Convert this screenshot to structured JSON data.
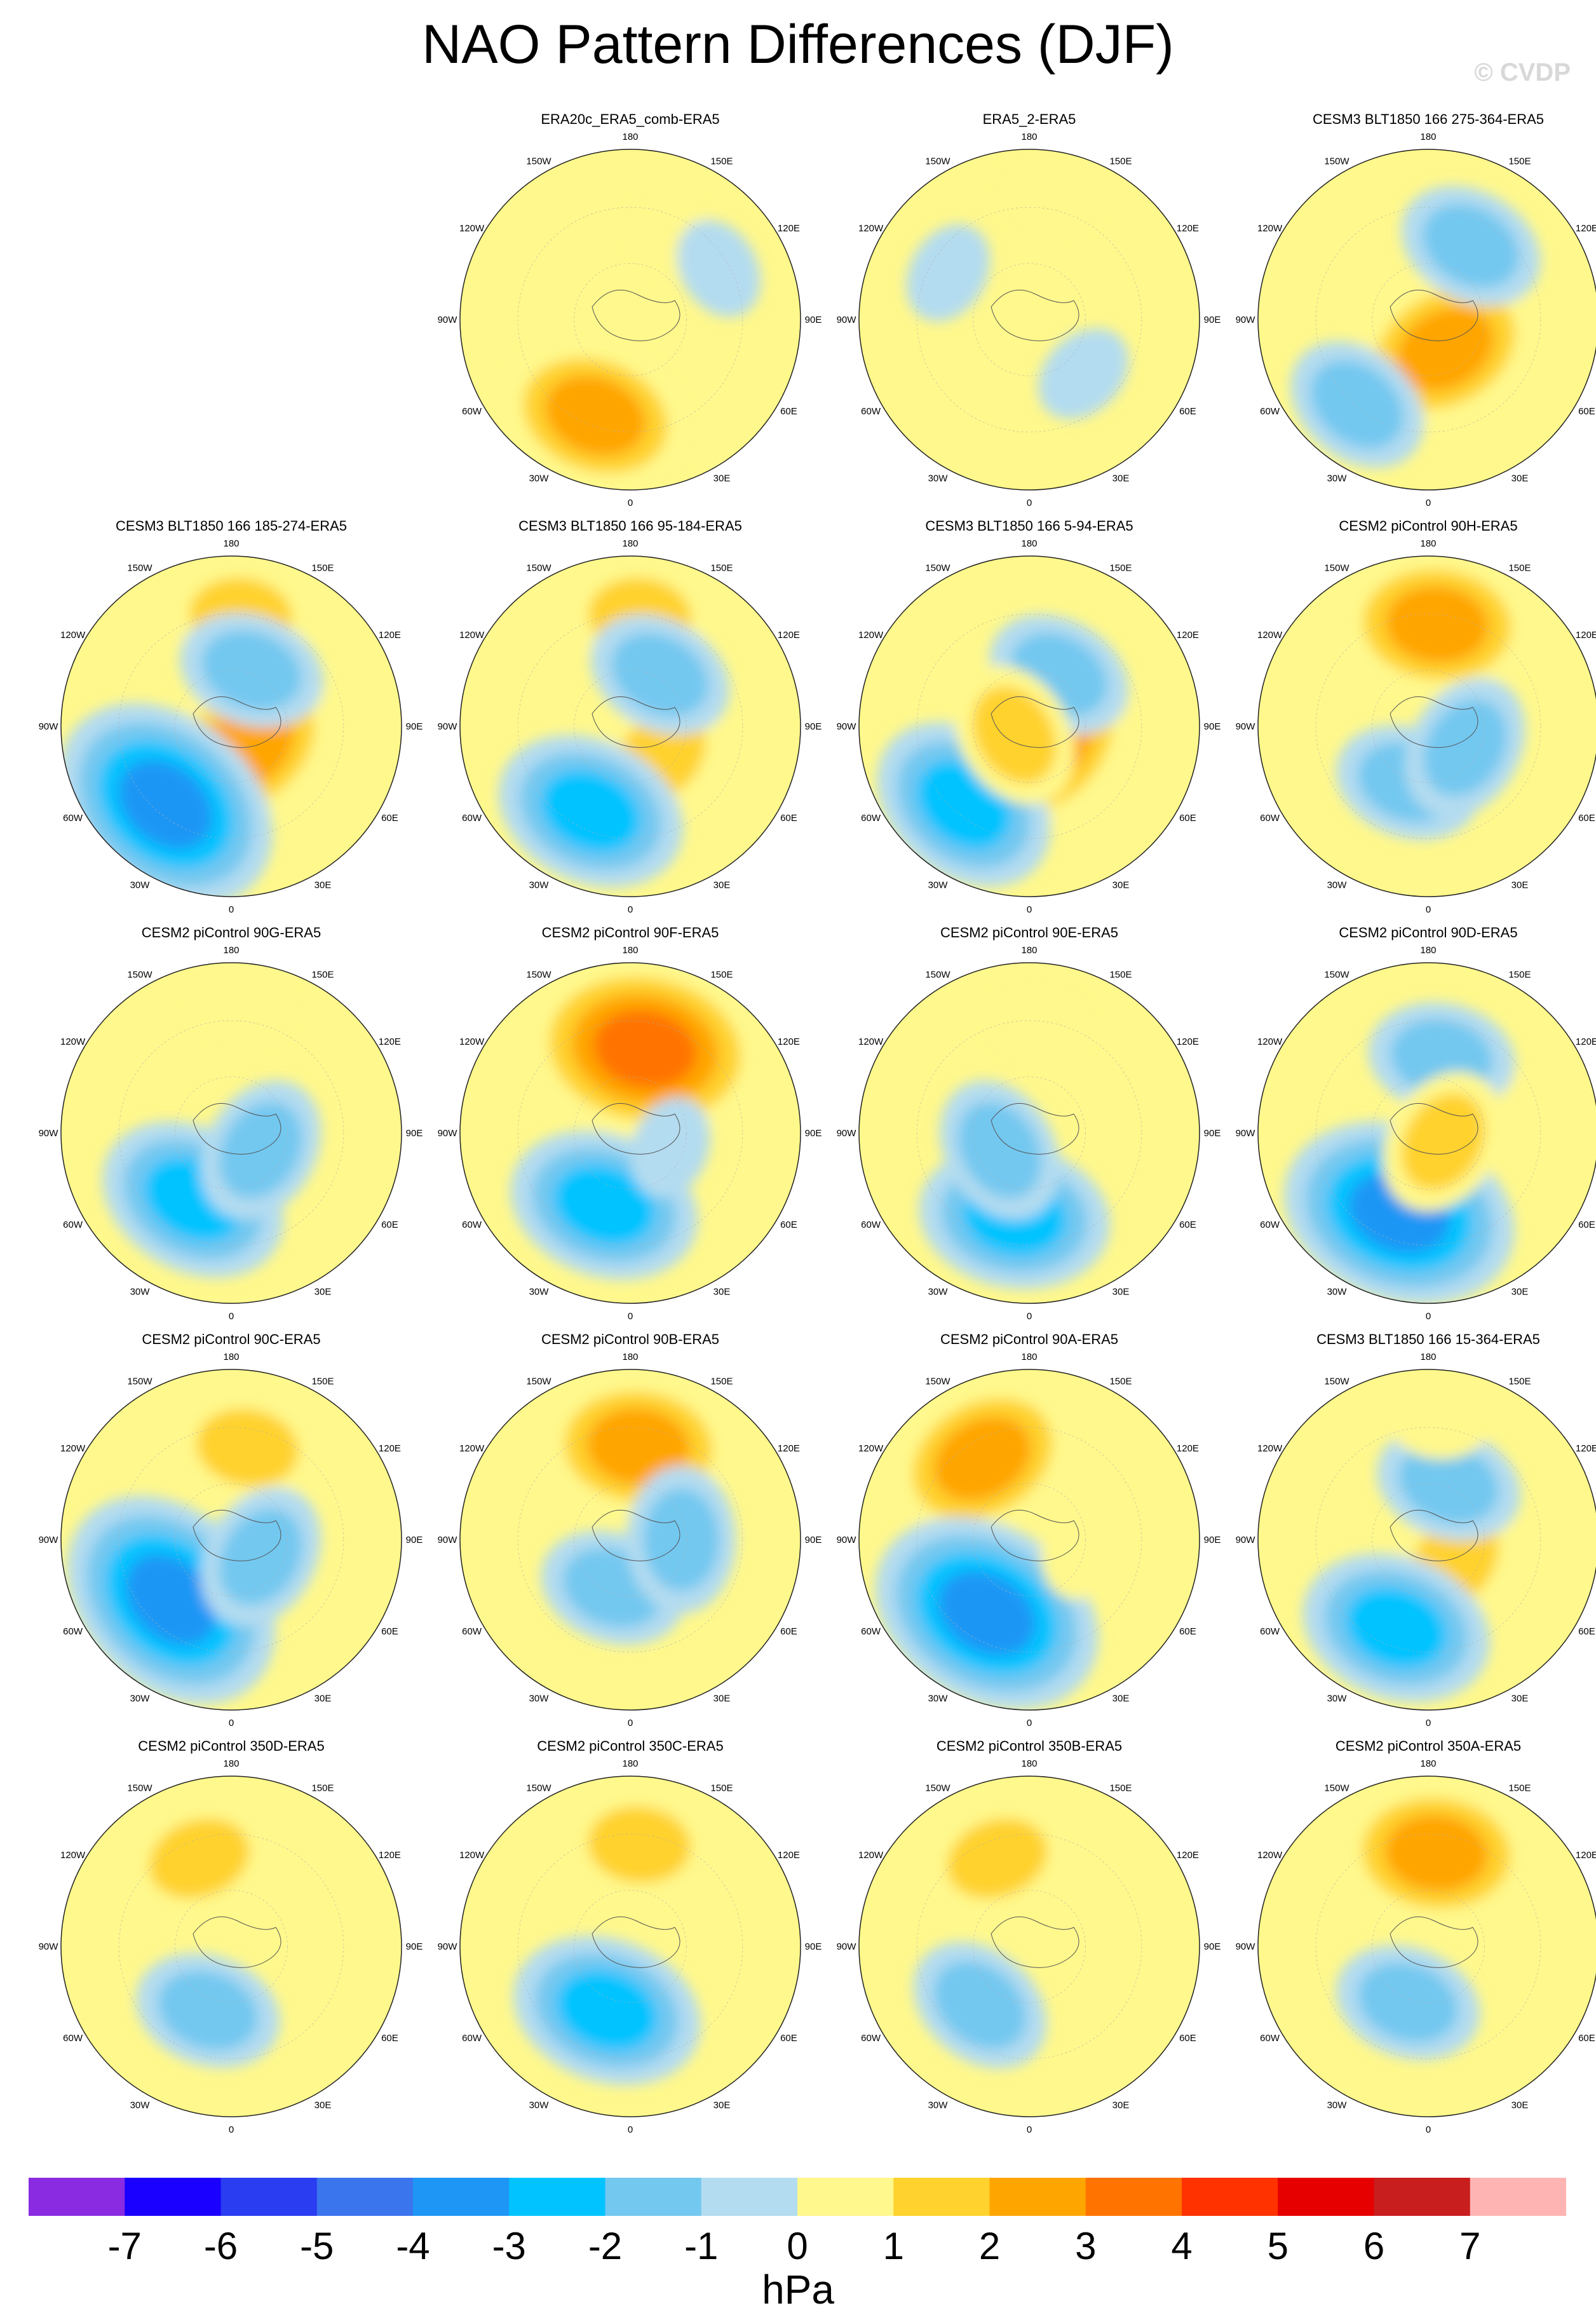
{
  "title": "NAO Pattern Differences (DJF)",
  "watermark": "© CVDP",
  "chart_data": {
    "type": "heatmap",
    "projection": "north-polar-stereographic",
    "variable_unit": "hPa",
    "longitude_labels": [
      "180",
      "150E",
      "120E",
      "90E",
      "60E",
      "30E",
      "0",
      "30W",
      "60W",
      "90W",
      "120W",
      "150W"
    ],
    "panels": [
      {
        "title": "ERA20c_ERA5_comb-ERA5",
        "features": [
          {
            "lon": -20,
            "rfrac": 0.6,
            "value": 3
          },
          {
            "lon": 150,
            "rfrac": 0.55,
            "value": 1
          },
          {
            "lon": 120,
            "rfrac": 0.6,
            "value": -1
          }
        ]
      },
      {
        "title": "ERA5_2-ERA5",
        "features": [
          {
            "lon": 45,
            "rfrac": 0.45,
            "value": -1
          },
          {
            "lon": -120,
            "rfrac": 0.55,
            "value": -1
          },
          {
            "lon": 170,
            "rfrac": 0.75,
            "value": 1
          }
        ]
      },
      {
        "title": "CESM3 BLT1850 166 275-364-ERA5",
        "features": [
          {
            "lon": 30,
            "rfrac": 0.2,
            "value": 3
          },
          {
            "lon": -40,
            "rfrac": 0.65,
            "value": -2
          },
          {
            "lon": 150,
            "rfrac": 0.5,
            "value": -2
          }
        ]
      },
      {
        "title": "CESM3 BLT1850 166 185-274-ERA5",
        "features": [
          {
            "lon": 40,
            "rfrac": 0.15,
            "value": 3
          },
          {
            "lon": -40,
            "rfrac": 0.6,
            "value": -4
          },
          {
            "lon": 175,
            "rfrac": 0.65,
            "value": 2
          },
          {
            "lon": 160,
            "rfrac": 0.35,
            "value": -2
          }
        ]
      },
      {
        "title": "CESM3 BLT1850 166 95-184-ERA5",
        "features": [
          {
            "lon": 45,
            "rfrac": 0.25,
            "value": 2
          },
          {
            "lon": -25,
            "rfrac": 0.55,
            "value": -3
          },
          {
            "lon": 175,
            "rfrac": 0.65,
            "value": 2
          },
          {
            "lon": 150,
            "rfrac": 0.35,
            "value": -2
          }
        ]
      },
      {
        "title": "CESM3 BLT1850 166 5-94-ERA5",
        "features": [
          {
            "lon": 50,
            "rfrac": 0.15,
            "value": 3
          },
          {
            "lon": -40,
            "rfrac": 0.6,
            "value": -3
          },
          {
            "lon": 150,
            "rfrac": 0.35,
            "value": -2
          },
          {
            "lon": -60,
            "rfrac": 0.1,
            "value": 2
          }
        ]
      },
      {
        "title": "CESM2 piControl 90H-ERA5",
        "features": [
          {
            "lon": 175,
            "rfrac": 0.6,
            "value": 3
          },
          {
            "lon": -20,
            "rfrac": 0.35,
            "value": -2
          },
          {
            "lon": 60,
            "rfrac": 0.25,
            "value": -2
          }
        ]
      },
      {
        "title": "CESM2 piControl 90G-ERA5",
        "features": [
          {
            "lon": -30,
            "rfrac": 0.45,
            "value": -3
          },
          {
            "lon": 60,
            "rfrac": 0.2,
            "value": -2
          },
          {
            "lon": 175,
            "rfrac": 0.75,
            "value": 1
          }
        ]
      },
      {
        "title": "CESM2 piControl 90F-ERA5",
        "features": [
          {
            "lon": 170,
            "rfrac": 0.5,
            "value": 4
          },
          {
            "lon": -20,
            "rfrac": 0.45,
            "value": -3
          },
          {
            "lon": 70,
            "rfrac": 0.25,
            "value": -1
          }
        ]
      },
      {
        "title": "CESM2 piControl 90E-ERA5",
        "features": [
          {
            "lon": -10,
            "rfrac": 0.5,
            "value": -3
          },
          {
            "lon": 175,
            "rfrac": 0.65,
            "value": 1
          },
          {
            "lon": -60,
            "rfrac": 0.2,
            "value": -2
          }
        ]
      },
      {
        "title": "CESM2 piControl 90D-ERA5",
        "features": [
          {
            "lon": -20,
            "rfrac": 0.5,
            "value": -4
          },
          {
            "lon": 120,
            "rfrac": 0.4,
            "value": 1
          },
          {
            "lon": 170,
            "rfrac": 0.45,
            "value": -2
          },
          {
            "lon": 60,
            "rfrac": 0.1,
            "value": 2
          }
        ]
      },
      {
        "title": "CESM2 piControl 90C-ERA5",
        "features": [
          {
            "lon": -45,
            "rfrac": 0.5,
            "value": -4
          },
          {
            "lon": 170,
            "rfrac": 0.55,
            "value": 2
          },
          {
            "lon": 60,
            "rfrac": 0.2,
            "value": -2
          }
        ]
      },
      {
        "title": "CESM2 piControl 90B-ERA5",
        "features": [
          {
            "lon": 175,
            "rfrac": 0.55,
            "value": 3
          },
          {
            "lon": -20,
            "rfrac": 0.3,
            "value": -2
          },
          {
            "lon": 90,
            "rfrac": 0.3,
            "value": -2
          }
        ]
      },
      {
        "title": "CESM2 piControl 90A-ERA5",
        "features": [
          {
            "lon": -150,
            "rfrac": 0.55,
            "value": 3
          },
          {
            "lon": -30,
            "rfrac": 0.5,
            "value": -4
          },
          {
            "lon": 80,
            "rfrac": 0.3,
            "value": 1
          }
        ]
      },
      {
        "title": "CESM3 BLT1850 166 15-364-ERA5",
        "features": [
          {
            "lon": 50,
            "rfrac": 0.2,
            "value": 2
          },
          {
            "lon": -20,
            "rfrac": 0.55,
            "value": -3
          },
          {
            "lon": 160,
            "rfrac": 0.35,
            "value": -2
          },
          {
            "lon": 175,
            "rfrac": 0.7,
            "value": 1
          }
        ]
      },
      {
        "title": "CESM2 piControl 350D-ERA5",
        "features": [
          {
            "lon": -160,
            "rfrac": 0.55,
            "value": 2
          },
          {
            "lon": -20,
            "rfrac": 0.4,
            "value": -2
          }
        ]
      },
      {
        "title": "CESM2 piControl 350C-ERA5",
        "features": [
          {
            "lon": -20,
            "rfrac": 0.4,
            "value": -3
          },
          {
            "lon": 175,
            "rfrac": 0.6,
            "value": 2
          }
        ]
      },
      {
        "title": "CESM2 piControl 350B-ERA5",
        "features": [
          {
            "lon": -160,
            "rfrac": 0.55,
            "value": 2
          },
          {
            "lon": -40,
            "rfrac": 0.45,
            "value": -2
          }
        ]
      },
      {
        "title": "CESM2 piControl 350A-ERA5",
        "features": [
          {
            "lon": 175,
            "rfrac": 0.55,
            "value": 3
          },
          {
            "lon": -20,
            "rfrac": 0.35,
            "value": -2
          }
        ]
      }
    ],
    "colorbar": {
      "colors": [
        "#8a2be2",
        "#1a00ff",
        "#2a3df0",
        "#3a75ee",
        "#1e96f5",
        "#00c3ff",
        "#73c8f0",
        "#b4dcf0",
        "#fff88c",
        "#ffd22d",
        "#ffa500",
        "#ff7300",
        "#ff3200",
        "#e60000",
        "#c81e1e",
        "#ffb4b4"
      ],
      "ticks": [
        "-7",
        "-6",
        "-5",
        "-4",
        "-3",
        "-2",
        "-1",
        "0",
        "1",
        "2",
        "3",
        "4",
        "5",
        "6",
        "7"
      ],
      "label": "hPa"
    }
  }
}
